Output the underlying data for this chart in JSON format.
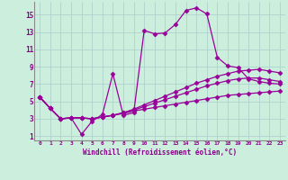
{
  "xlabel": "Windchill (Refroidissement éolien,°C)",
  "background_color": "#cceedd",
  "grid_color": "#aacccc",
  "line_color": "#990099",
  "x_ticks": [
    0,
    1,
    2,
    3,
    4,
    5,
    6,
    7,
    8,
    9,
    10,
    11,
    12,
    13,
    14,
    15,
    16,
    17,
    18,
    19,
    20,
    21,
    22,
    23
  ],
  "y_ticks": [
    1,
    3,
    5,
    7,
    9,
    11,
    13,
    15
  ],
  "xlim": [
    -0.5,
    23.5
  ],
  "ylim": [
    0.5,
    16.5
  ],
  "lines": [
    {
      "x": [
        0,
        1,
        2,
        3,
        4,
        5,
        6,
        7,
        8,
        9,
        10,
        11,
        12,
        13,
        14,
        15,
        16,
        17,
        18,
        19,
        20,
        21,
        22,
        23
      ],
      "y": [
        5.5,
        4.2,
        3.0,
        3.1,
        1.2,
        2.7,
        3.5,
        8.2,
        3.4,
        3.7,
        13.2,
        12.8,
        12.9,
        13.9,
        15.5,
        15.8,
        15.1,
        10.1,
        9.1,
        8.9,
        7.6,
        7.3,
        7.1,
        7.0
      ]
    },
    {
      "x": [
        0,
        1,
        2,
        3,
        4,
        5,
        6,
        7,
        8,
        9,
        10,
        11,
        12,
        13,
        14,
        15,
        16,
        17,
        18,
        19,
        20,
        21,
        22,
        23
      ],
      "y": [
        5.5,
        4.2,
        3.0,
        3.1,
        3.1,
        3.0,
        3.2,
        3.4,
        3.7,
        4.1,
        4.6,
        5.1,
        5.6,
        6.1,
        6.6,
        7.1,
        7.5,
        7.9,
        8.2,
        8.5,
        8.6,
        8.7,
        8.5,
        8.3
      ]
    },
    {
      "x": [
        0,
        1,
        2,
        3,
        4,
        5,
        6,
        7,
        8,
        9,
        10,
        11,
        12,
        13,
        14,
        15,
        16,
        17,
        18,
        19,
        20,
        21,
        22,
        23
      ],
      "y": [
        5.5,
        4.2,
        3.0,
        3.1,
        3.1,
        3.0,
        3.2,
        3.4,
        3.7,
        4.0,
        4.4,
        4.8,
        5.2,
        5.6,
        6.0,
        6.4,
        6.8,
        7.1,
        7.4,
        7.6,
        7.7,
        7.7,
        7.5,
        7.3
      ]
    },
    {
      "x": [
        0,
        1,
        2,
        3,
        4,
        5,
        6,
        7,
        8,
        9,
        10,
        11,
        12,
        13,
        14,
        15,
        16,
        17,
        18,
        19,
        20,
        21,
        22,
        23
      ],
      "y": [
        5.5,
        4.2,
        3.0,
        3.1,
        3.1,
        3.0,
        3.2,
        3.4,
        3.6,
        3.9,
        4.1,
        4.3,
        4.5,
        4.7,
        4.9,
        5.1,
        5.3,
        5.5,
        5.7,
        5.8,
        5.9,
        6.0,
        6.1,
        6.2
      ]
    }
  ]
}
